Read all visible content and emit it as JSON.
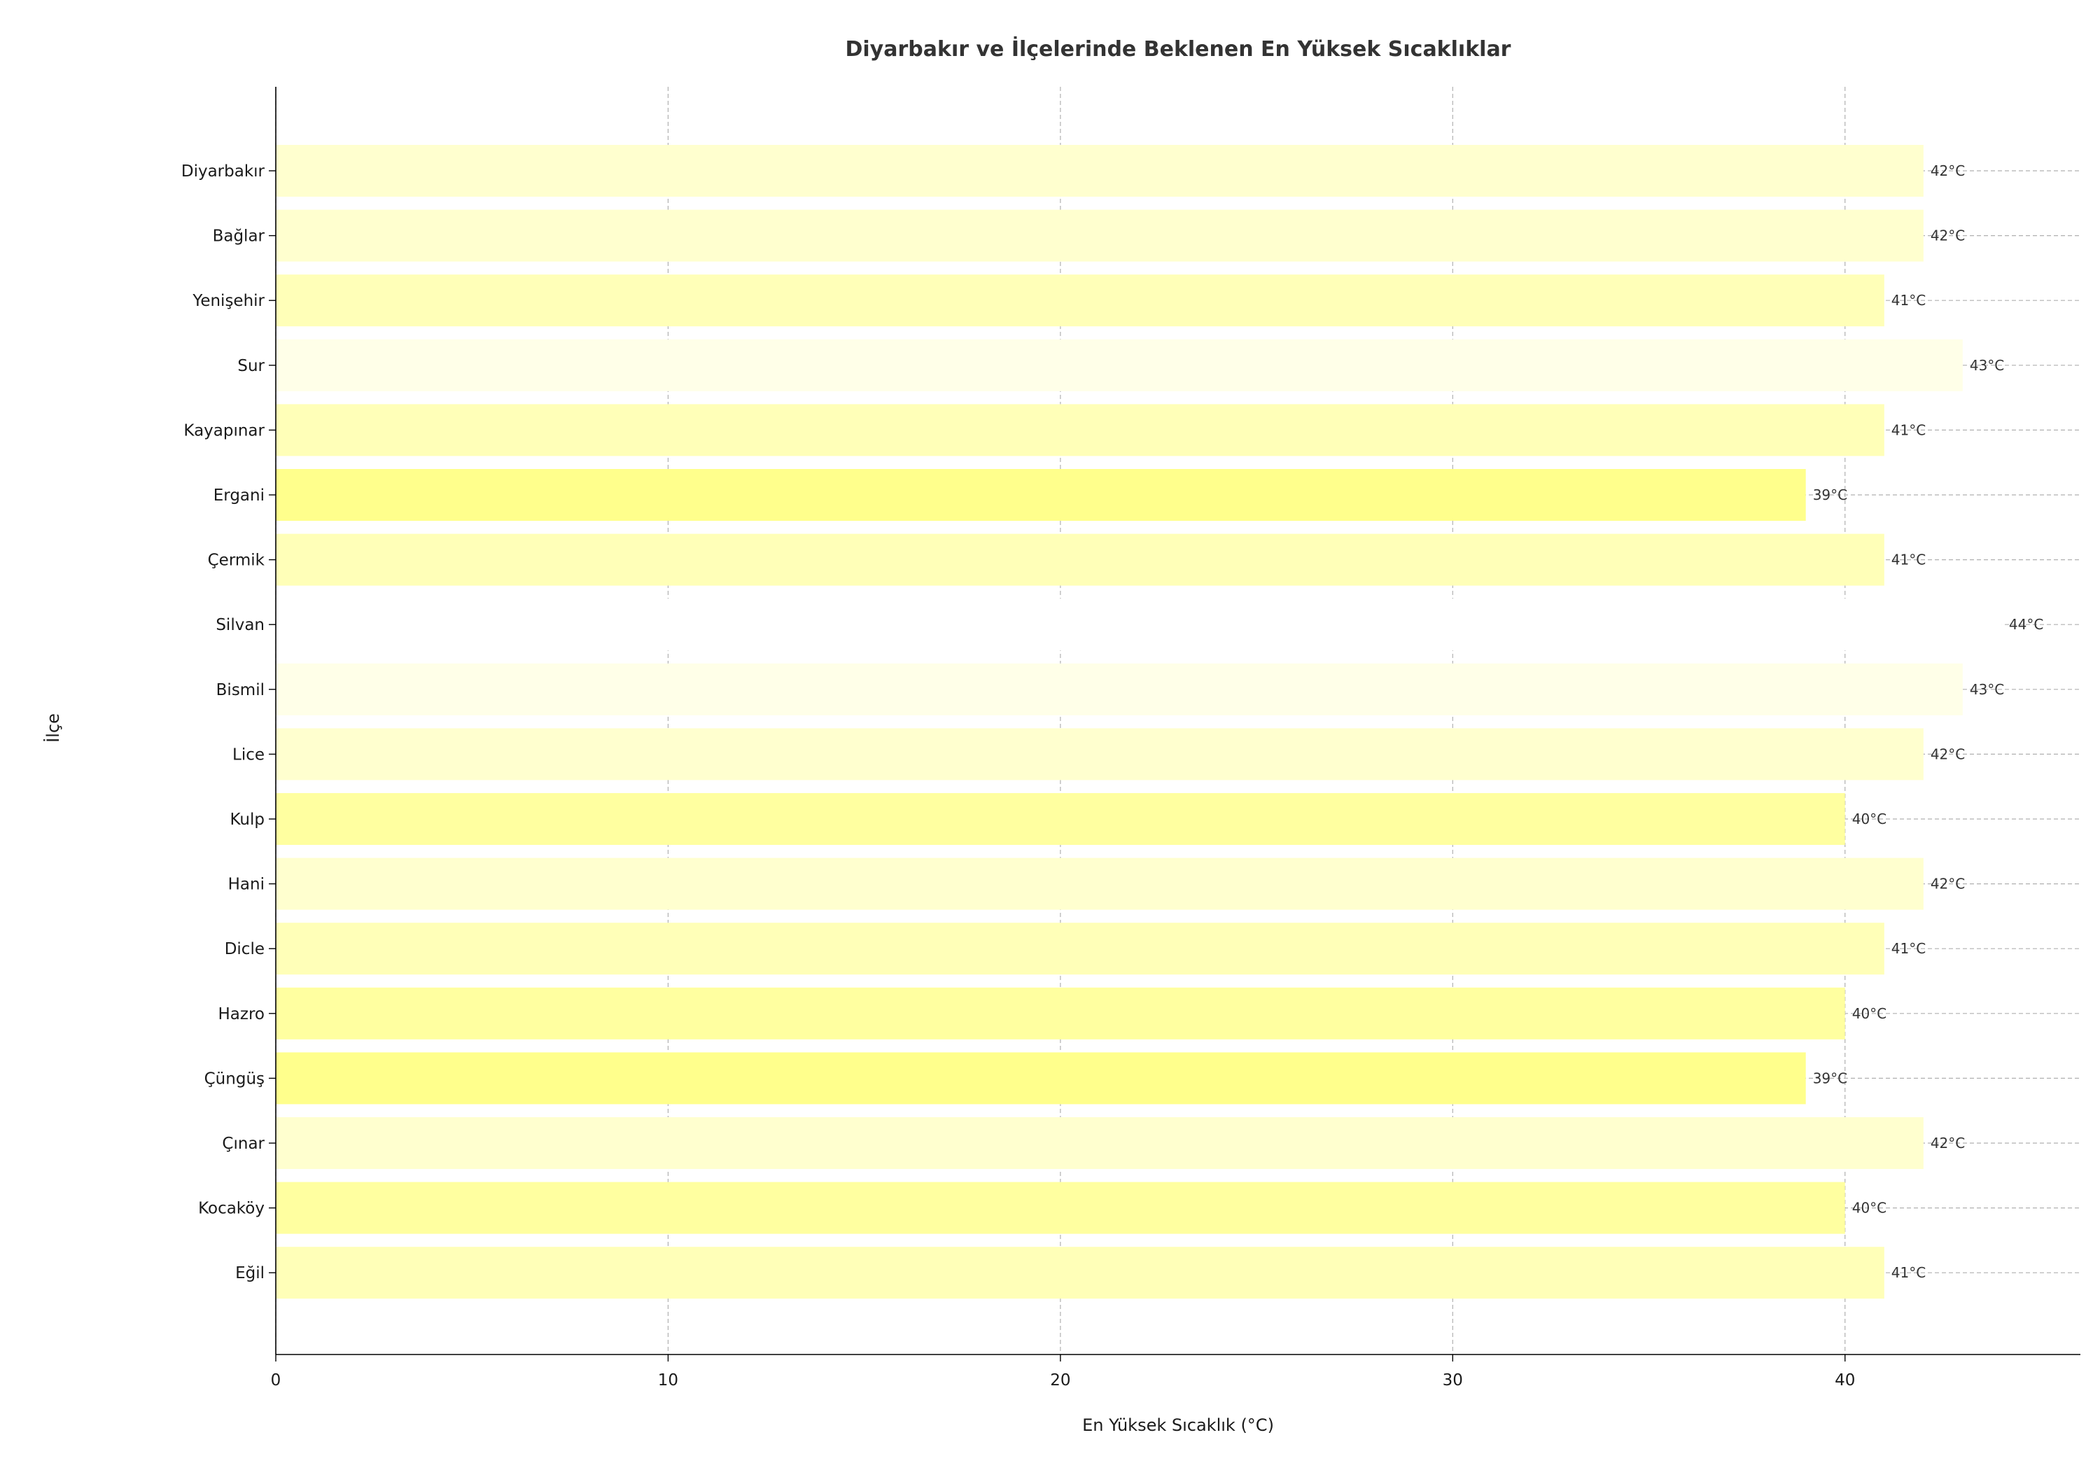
{
  "chart_data": {
    "type": "bar",
    "orientation": "horizontal",
    "title": "Diyarbakır ve İlçelerinde Beklenen En Yüksek Sıcaklıklar",
    "xlabel": "En Yüksek Sıcaklık (°C)",
    "ylabel": "İlçe",
    "xlim": [
      0,
      46
    ],
    "xticks": [
      0,
      10,
      20,
      30,
      40
    ],
    "grid": true,
    "value_suffix": "°C",
    "categories": [
      "Diyarbakır",
      "Bağlar",
      "Yenişehir",
      "Sur",
      "Kayapınar",
      "Ergani",
      "Çermik",
      "Silvan",
      "Bismil",
      "Lice",
      "Kulp",
      "Hani",
      "Dicle",
      "Hazro",
      "Çüngüş",
      "Çınar",
      "Kocaköy",
      "Eğil"
    ],
    "values": [
      42,
      42,
      41,
      43,
      41,
      39,
      41,
      44,
      43,
      42,
      40,
      42,
      41,
      40,
      39,
      42,
      40,
      41
    ],
    "value_labels": [
      "42°C",
      "42°C",
      "41°C",
      "43°C",
      "41°C",
      "39°C",
      "41°C",
      "44°C",
      "43°C",
      "42°C",
      "40°C",
      "42°C",
      "41°C",
      "40°C",
      "39°C",
      "42°C",
      "40°C",
      "41°C"
    ],
    "colors": {
      "39": "#ffff8c",
      "40": "#ffffa0",
      "41": "#ffffb8",
      "42": "#ffffcf",
      "43": "#ffffe8",
      "44": "#ffffff"
    }
  }
}
